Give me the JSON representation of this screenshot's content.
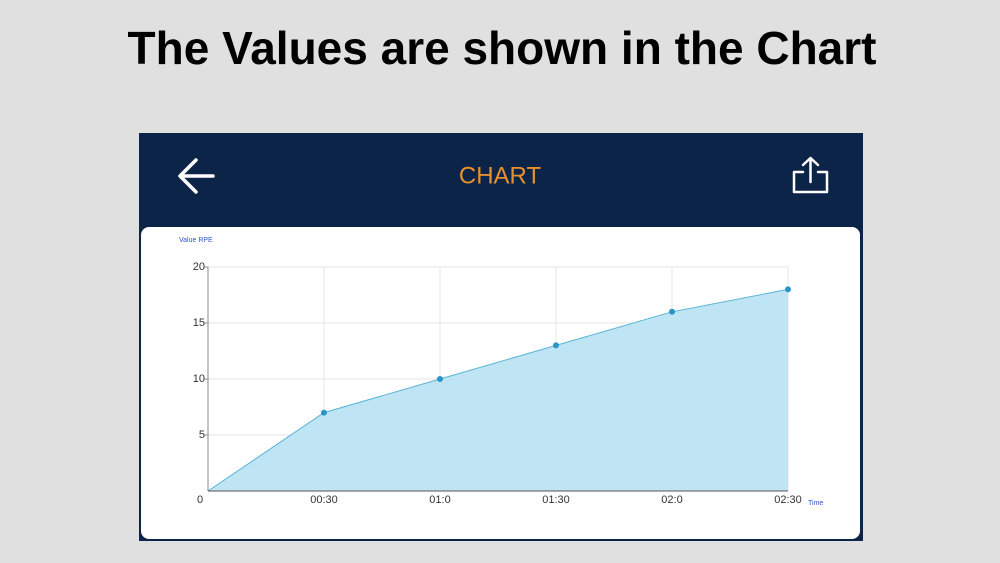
{
  "heading": "The Values are shown in the Chart",
  "app_bar": {
    "title": "CHART"
  },
  "chart_data": {
    "type": "area",
    "y_label": "Value RPE",
    "x_label": "Time",
    "categories": [
      "0",
      "00:30",
      "01:0",
      "01:30",
      "02:0",
      "02:30"
    ],
    "values": [
      0,
      7,
      10,
      13,
      16,
      18
    ],
    "color": "#bfe4f3",
    "line_color": "#5ab4d6",
    "marker_color": "#2a95c8",
    "ylim": [
      0,
      20
    ],
    "yticks": [
      5,
      10,
      15,
      20
    ],
    "grid": true
  }
}
